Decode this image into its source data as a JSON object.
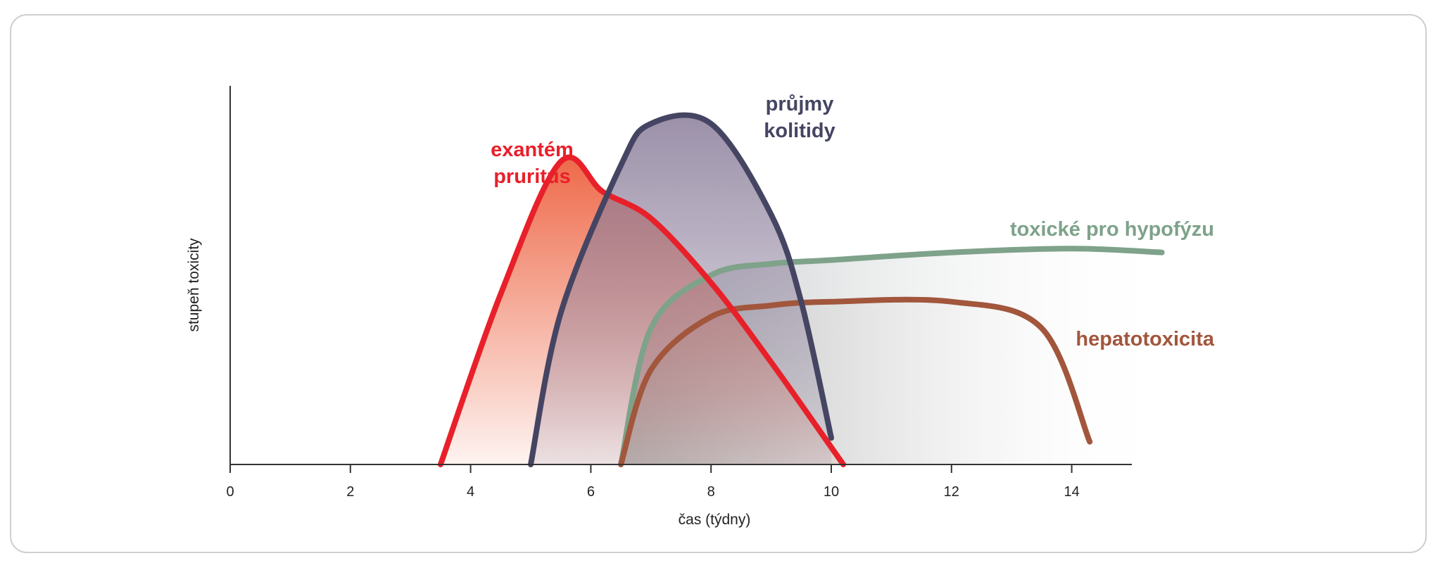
{
  "chart_data": {
    "type": "area",
    "xlabel": "čas (týdny)",
    "ylabel": "stupeň toxicity",
    "xlim": [
      0,
      15
    ],
    "ylim": [
      0,
      100
    ],
    "x_ticks": [
      0,
      2,
      4,
      6,
      8,
      10,
      12,
      14
    ],
    "series": [
      {
        "name": "exantém\npruritus",
        "color": "#e8202a",
        "fill": "#ee6a4a",
        "x": [
          3.5,
          4.5,
          5.5,
          6.2,
          7.0,
          8.0,
          9.0,
          10.2
        ],
        "y": [
          0,
          45,
          80,
          72,
          65,
          48,
          27,
          0
        ]
      },
      {
        "name": "průjmy\nkolitidy",
        "color": "#454563",
        "fill": "#8a7d9a",
        "x": [
          5.0,
          5.5,
          6.5,
          7.0,
          8.0,
          9.0,
          9.5,
          10.0
        ],
        "y": [
          0,
          40,
          79,
          90,
          90,
          66,
          43,
          7
        ]
      },
      {
        "name": "toxické pro hypofýzu",
        "color": "#7ea28a",
        "fill": "#b9bcbd",
        "x": [
          6.5,
          7.0,
          8.0,
          9.0,
          10.0,
          12.0,
          14.0,
          15.5
        ],
        "y": [
          0,
          36,
          50,
          53,
          54,
          56,
          57,
          56
        ]
      },
      {
        "name": "hepatotoxicita",
        "color": "#a2563c",
        "fill": "#c7c7c4",
        "x": [
          6.5,
          7.0,
          8.0,
          9.0,
          10.0,
          12.0,
          13.5,
          14.3
        ],
        "y": [
          0,
          25,
          39,
          42,
          43,
          43,
          36,
          6
        ]
      }
    ]
  }
}
